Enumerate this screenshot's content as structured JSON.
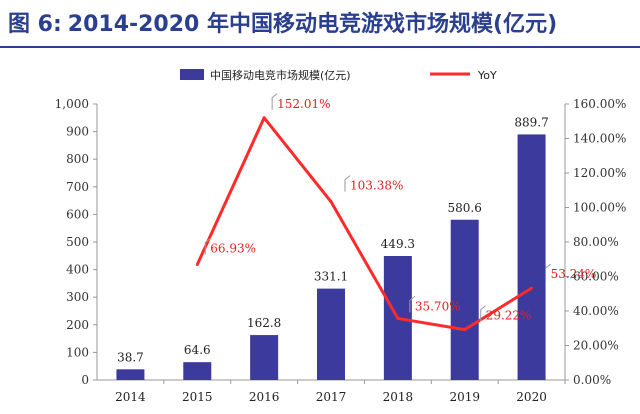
{
  "figure": {
    "label": "图 6:",
    "title": "2014-2020 年中国移动电竞游戏市场规模(亿元)"
  },
  "colors": {
    "title": "#2b3f8f",
    "bar": "#3d3a9e",
    "line": "#ff2a2a",
    "label_red": "#e02020"
  },
  "chart_data": {
    "type": "bar+line",
    "title": "2014-2020 年中国移动电竞游戏市场规模(亿元)",
    "categories": [
      "2014",
      "2015",
      "2016",
      "2017",
      "2018",
      "2019",
      "2020"
    ],
    "series": [
      {
        "name": "中国移动电竞市场规模(亿元)",
        "type": "bar",
        "axis": "left",
        "values": [
          38.7,
          64.6,
          162.8,
          331.1,
          449.3,
          580.6,
          889.7
        ],
        "labels": [
          "38.7",
          "64.6",
          "162.8",
          "331.1",
          "449.3",
          "580.6",
          "889.7"
        ]
      },
      {
        "name": "YoY",
        "type": "line",
        "axis": "right",
        "values": [
          null,
          66.93,
          152.01,
          103.38,
          35.7,
          29.22,
          53.24
        ],
        "labels": [
          "",
          "66.93%",
          "152.01%",
          "103.38%",
          "35.70%",
          "29.22%",
          "53.24%"
        ]
      }
    ],
    "y_left": {
      "min": 0,
      "max": 1000,
      "step": 100,
      "tick_labels": [
        "0",
        "100",
        "200",
        "300",
        "400",
        "500",
        "600",
        "700",
        "800",
        "900",
        "1,000"
      ]
    },
    "y_right": {
      "min": 0,
      "max": 160,
      "step": 20,
      "tick_labels": [
        "0.00%",
        "20.00%",
        "40.00%",
        "60.00%",
        "80.00%",
        "100.00%",
        "120.00%",
        "140.00%",
        "160.00%"
      ]
    },
    "legend": {
      "position": "top",
      "entries": [
        "中国移动电竞市场规模(亿元)",
        "YoY"
      ]
    },
    "grid": false
  }
}
